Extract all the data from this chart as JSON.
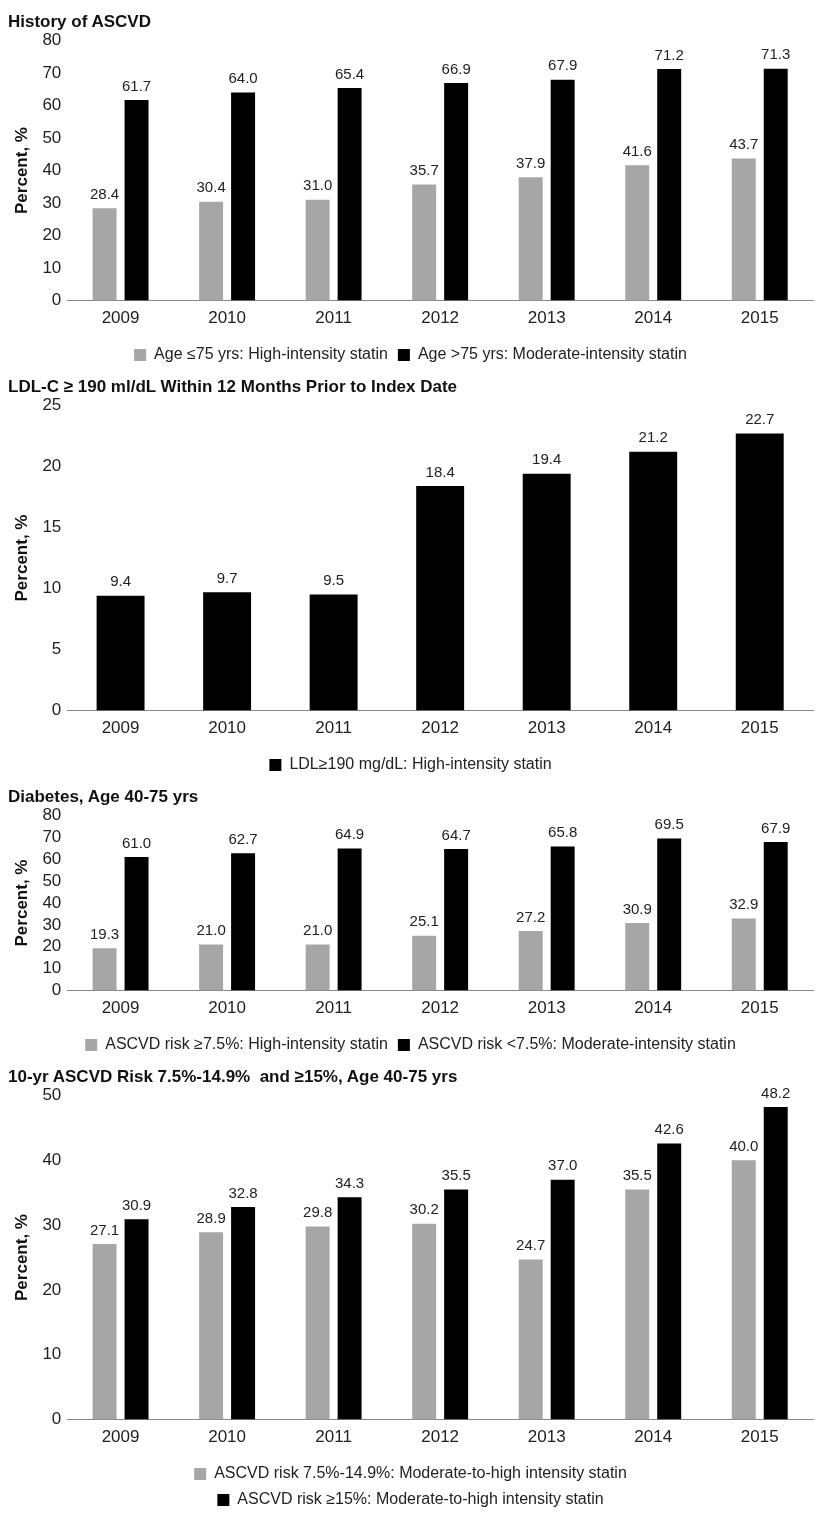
{
  "chart_data": [
    {
      "type": "bar",
      "title": "History of ASCVD",
      "ylabel": "Percent, %",
      "categories": [
        "2009",
        "2010",
        "2011",
        "2012",
        "2013",
        "2014",
        "2015"
      ],
      "ylim": [
        0,
        80
      ],
      "yticks": [
        0,
        10,
        20,
        30,
        40,
        50,
        60,
        70,
        80
      ],
      "grid": false,
      "legend": "bottom",
      "series": [
        {
          "name": "Age ≤75 yrs: High-intensity statin",
          "color": "#a6a6a6",
          "values": [
            28.4,
            30.4,
            31.0,
            35.7,
            37.9,
            41.6,
            43.7
          ],
          "value_labels": [
            "28.4",
            "30.4",
            "31.0",
            "35.7",
            "37.9",
            "41.6",
            "43.7"
          ]
        },
        {
          "name": "Age >75 yrs: Moderate-intensity statin",
          "color": "#000000",
          "values": [
            61.7,
            64.0,
            65.4,
            66.9,
            67.9,
            71.2,
            71.3
          ],
          "value_labels": [
            "61.7",
            "64.0",
            "65.4",
            "66.9",
            "67.9",
            "71.2",
            "71.3"
          ]
        }
      ]
    },
    {
      "type": "bar",
      "title": "LDL-C ≥ 190 ml/dL Within 12 Months Prior to Index Date",
      "ylabel": "Percent, %",
      "categories": [
        "2009",
        "2010",
        "2011",
        "2012",
        "2013",
        "2014",
        "2015"
      ],
      "ylim": [
        0,
        25
      ],
      "yticks": [
        0,
        5,
        10,
        15,
        20,
        25
      ],
      "grid": false,
      "legend": "bottom",
      "series": [
        {
          "name": "LDL≥190 mg/dL: High-intensity statin",
          "color": "#000000",
          "values": [
            9.4,
            9.7,
            9.5,
            18.4,
            19.4,
            21.2,
            22.7
          ],
          "value_labels": [
            "9.4",
            "9.7",
            "9.5",
            "18.4",
            "19.4",
            "21.2",
            "22.7"
          ]
        }
      ]
    },
    {
      "type": "bar",
      "title": "Diabetes, Age 40-75 yrs",
      "ylabel": "Percent, %",
      "categories": [
        "2009",
        "2010",
        "2011",
        "2012",
        "2013",
        "2014",
        "2015"
      ],
      "ylim": [
        0,
        80
      ],
      "yticks": [
        0,
        10,
        20,
        30,
        40,
        50,
        60,
        70,
        80
      ],
      "grid": false,
      "legend": "bottom",
      "series": [
        {
          "name": "ASCVD risk ≥7.5%: High-intensity statin",
          "color": "#a6a6a6",
          "values": [
            19.3,
            21.0,
            21.0,
            25.1,
            27.2,
            30.9,
            32.9
          ],
          "value_labels": [
            "19.3",
            "21.0",
            "21.0",
            "25.1",
            "27.2",
            "30.9",
            "32.9"
          ]
        },
        {
          "name": "ASCVD risk <7.5%: Moderate-intensity statin",
          "color": "#000000",
          "values": [
            61.0,
            62.7,
            64.9,
            64.7,
            65.8,
            69.5,
            67.9
          ],
          "value_labels": [
            "61.0",
            "62.7",
            "64.9",
            "64.7",
            "65.8",
            "69.5",
            "67.9"
          ]
        }
      ]
    },
    {
      "type": "bar",
      "title": "10-yr ASCVD Risk 7.5%-14.9%  and ≥15%, Age 40-75 yrs",
      "ylabel": "Percent, %",
      "categories": [
        "2009",
        "2010",
        "2011",
        "2012",
        "2013",
        "2014",
        "2015"
      ],
      "ylim": [
        0,
        50
      ],
      "yticks": [
        0,
        10,
        20,
        30,
        40,
        50
      ],
      "grid": false,
      "legend": "bottom",
      "series": [
        {
          "name": "ASCVD risk 7.5%-14.9%: Moderate-to-high intensity statin",
          "color": "#a6a6a6",
          "values": [
            27.1,
            28.9,
            29.8,
            30.2,
            24.7,
            35.5,
            40.0
          ],
          "value_labels": [
            "27.1",
            "28.9",
            "29.8",
            "30.2",
            "24.7",
            "35.5",
            "40.0"
          ]
        },
        {
          "name": "ASCVD risk ≥15%: Moderate-to-high intensity statin",
          "color": "#000000",
          "values": [
            30.9,
            32.8,
            34.3,
            35.5,
            37.0,
            42.6,
            48.2
          ],
          "value_labels": [
            "30.9",
            "32.8",
            "34.3",
            "35.5",
            "37.0",
            "42.6",
            "48.2"
          ]
        }
      ]
    }
  ]
}
